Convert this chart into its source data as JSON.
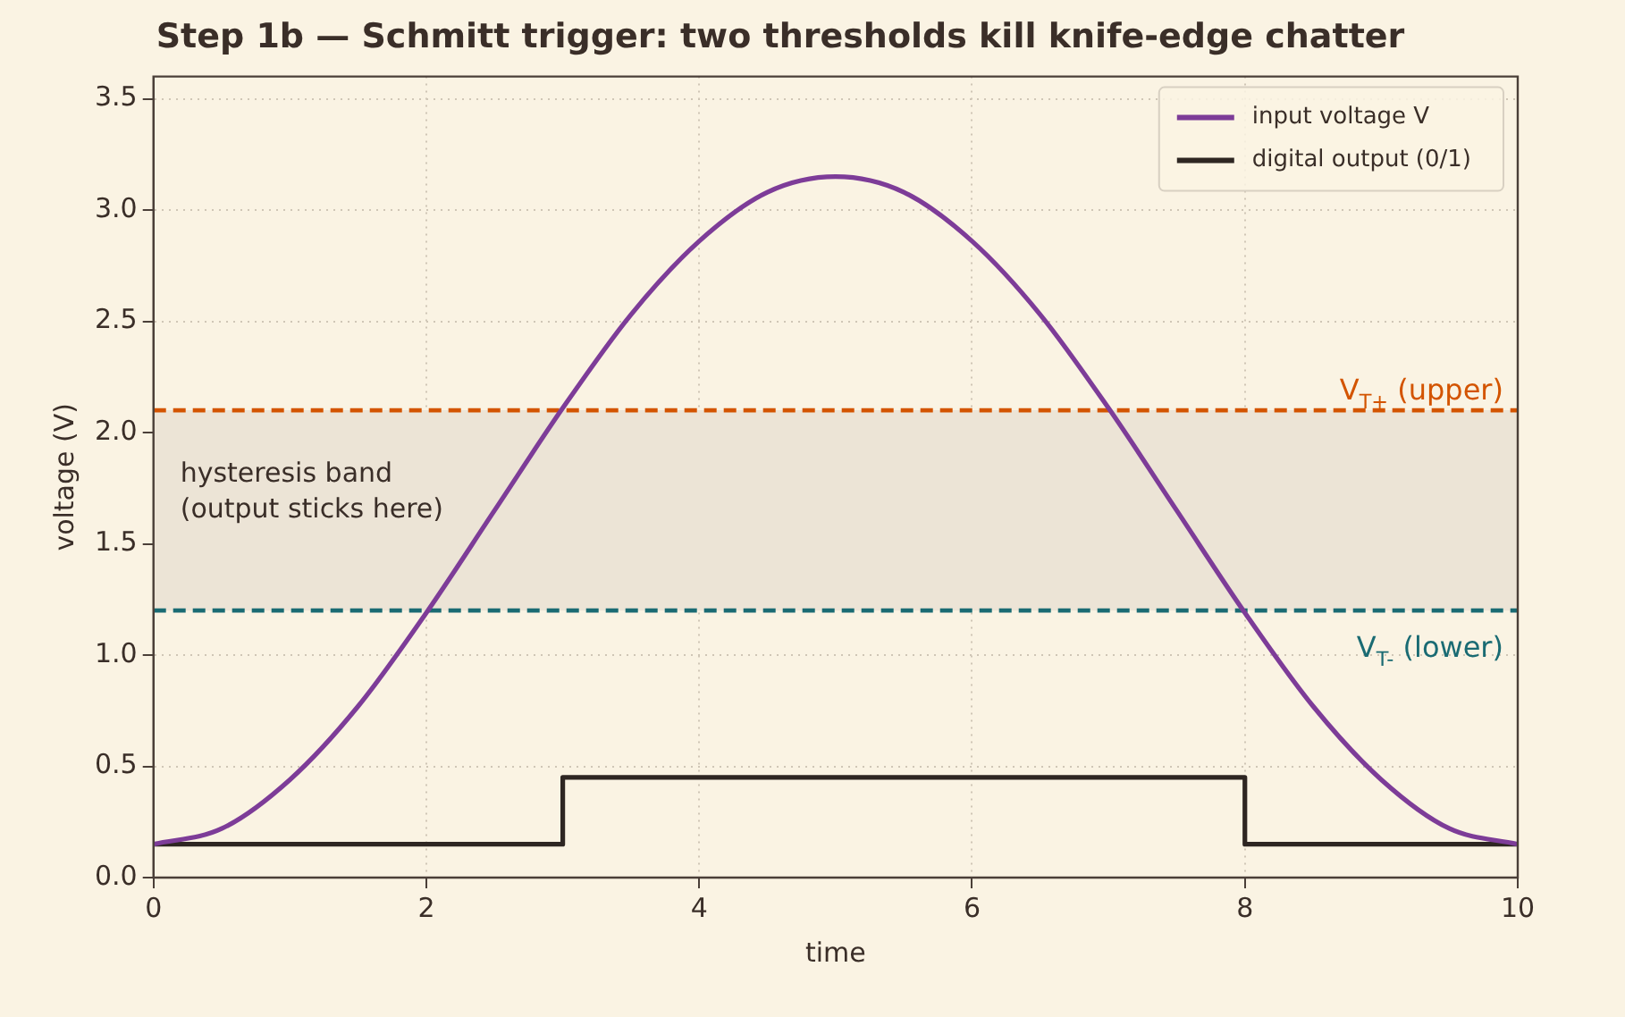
{
  "chart_data": {
    "type": "line",
    "title": "Step 1b — Schmitt trigger: two thresholds kill knife-edge chatter",
    "xlabel": "time",
    "ylabel": "voltage (V)",
    "xlim": [
      0,
      10
    ],
    "xticks": [
      0,
      2,
      4,
      6,
      8,
      10
    ],
    "ylim": [
      0,
      3.6
    ],
    "yticks": [
      {
        "value": 0,
        "label": "0.0"
      },
      {
        "value": 0.5,
        "label": "0.5"
      },
      {
        "value": 1,
        "label": "1.0"
      },
      {
        "value": 1.5,
        "label": "1.5"
      },
      {
        "value": 2,
        "label": "2.0"
      },
      {
        "value": 2.5,
        "label": "2.5"
      },
      {
        "value": 3,
        "label": "3.0"
      },
      {
        "value": 3.5,
        "label": "3.5"
      }
    ],
    "grid": true,
    "legend": "top right",
    "series": [
      {
        "name": "input voltage V",
        "color": "#7d3c98",
        "x": [
          0,
          0.5,
          1,
          1.5,
          2,
          2.5,
          3,
          3.5,
          4,
          4.5,
          5,
          5.5,
          6,
          6.5,
          7,
          7.5,
          8,
          8.5,
          9,
          9.5,
          10
        ],
        "values": [
          0.15,
          0.22,
          0.44,
          0.77,
          1.19,
          1.65,
          2.11,
          2.53,
          2.86,
          3.08,
          3.15,
          3.08,
          2.86,
          2.53,
          2.11,
          1.65,
          1.19,
          0.77,
          0.44,
          0.22,
          0.15
        ]
      },
      {
        "name": "digital output (0/1)",
        "color": "#2e2622",
        "type": "step",
        "x": [
          0,
          3,
          8,
          10
        ],
        "values": [
          0.15,
          0.45,
          0.15,
          0.15
        ]
      }
    ],
    "ref_lines": [
      {
        "axis": "y",
        "value": 2.1,
        "label": "V$_{T+}$ (upper)",
        "color": "#d35400",
        "line_style": "dashed"
      },
      {
        "axis": "y",
        "value": 1.2,
        "label": "V$_{T-}$ (lower)",
        "color": "#1a6b73",
        "line_style": "dashed"
      }
    ],
    "bands": [
      {
        "axis": "y",
        "from": 1.2,
        "to": 2.1,
        "label": "hysteresis band\n(output sticks here)",
        "color": "#ece4d6"
      }
    ]
  }
}
